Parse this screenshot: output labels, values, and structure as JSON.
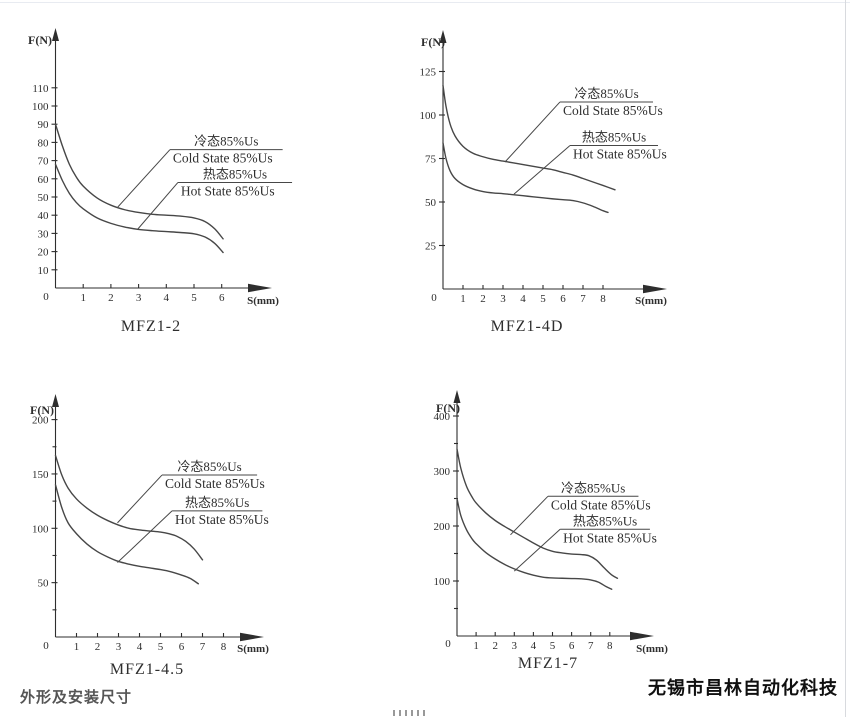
{
  "page": {
    "section_label": "外形及安装尺寸",
    "company_name": "无锡市昌林自动化科技"
  },
  "chart_data": [
    {
      "type": "line",
      "title": "MFZ1-2",
      "ylabel": "F(N)",
      "xlabel": "S(mm)",
      "origin_label": "0",
      "x_ticks": [
        1,
        2,
        3,
        4,
        5,
        6
      ],
      "y_ticks": [
        10,
        20,
        30,
        40,
        50,
        60,
        70,
        80,
        90,
        100,
        110
      ],
      "y_minor_ticks": [],
      "xlim": [
        0,
        6.05
      ],
      "ylim": [
        0,
        120
      ],
      "grid": false,
      "series": [
        {
          "name": "cold-state",
          "label_cn": "冷态85%Us",
          "label_en": "Cold State 85%Us",
          "points": [
            [
              0,
              90
            ],
            [
              0.25,
              78
            ],
            [
              0.5,
              68
            ],
            [
              0.75,
              61
            ],
            [
              1,
              56
            ],
            [
              1.5,
              49.5
            ],
            [
              2,
              45.5
            ],
            [
              2.5,
              43
            ],
            [
              3,
              41.5
            ],
            [
              3.5,
              40.5
            ],
            [
              4,
              40
            ],
            [
              4.5,
              39.5
            ],
            [
              5,
              38.5
            ],
            [
              5.4,
              36.5
            ],
            [
              5.75,
              32.5
            ],
            [
              6.05,
              27
            ]
          ]
        },
        {
          "name": "hot-state",
          "label_cn": "热态85%Us",
          "label_en": "Hot State 85%Us",
          "points": [
            [
              0,
              68
            ],
            [
              0.25,
              59
            ],
            [
              0.5,
              52
            ],
            [
              0.75,
              47
            ],
            [
              1,
              43.5
            ],
            [
              1.5,
              38.5
            ],
            [
              2,
              35.5
            ],
            [
              2.5,
              33.5
            ],
            [
              3,
              32.2
            ],
            [
              3.5,
              31.5
            ],
            [
              4,
              31
            ],
            [
              4.5,
              30.5
            ],
            [
              5,
              29.8
            ],
            [
              5.4,
              28
            ],
            [
              5.75,
              24.5
            ],
            [
              6.05,
              19.5
            ]
          ]
        }
      ],
      "legend": [
        {
          "series_index": 0,
          "underline": [
            4.13,
            8.2,
            76
          ],
          "attach": [
            2.25,
            44.5
          ]
        },
        {
          "series_index": 1,
          "underline": [
            4.42,
            8.54,
            58
          ],
          "attach": [
            2.95,
            32
          ]
        }
      ]
    },
    {
      "type": "line",
      "title": "MFZ1-4D",
      "ylabel": "F(N)",
      "xlabel": "S(mm)",
      "origin_label": "0",
      "x_ticks": [
        1,
        2,
        3,
        4,
        5,
        6,
        7,
        8
      ],
      "y_ticks": [
        25,
        50,
        75,
        100,
        125
      ],
      "y_minor_ticks": [],
      "xlim": [
        0,
        8.6
      ],
      "ylim": [
        0,
        135
      ],
      "grid": false,
      "series": [
        {
          "name": "cold-state",
          "label_cn": "冷态85%Us",
          "label_en": "Cold State 85%Us",
          "points": [
            [
              0,
              117
            ],
            [
              0.15,
              105
            ],
            [
              0.35,
              95
            ],
            [
              0.6,
              88
            ],
            [
              1,
              82
            ],
            [
              1.5,
              78
            ],
            [
              2,
              76
            ],
            [
              2.5,
              74.5
            ],
            [
              3,
              73.5
            ],
            [
              3.5,
              72.5
            ],
            [
              4,
              71.5
            ],
            [
              4.5,
              70.5
            ],
            [
              5,
              69.5
            ],
            [
              5.5,
              68.5
            ],
            [
              6,
              67
            ],
            [
              6.5,
              65.5
            ],
            [
              7,
              63.5
            ],
            [
              7.5,
              61.5
            ],
            [
              8,
              59.5
            ],
            [
              8.6,
              57
            ]
          ]
        },
        {
          "name": "hot-state",
          "label_cn": "热态85%Us",
          "label_en": "Hot State 85%Us",
          "points": [
            [
              0,
              84
            ],
            [
              0.15,
              75
            ],
            [
              0.35,
              68
            ],
            [
              0.6,
              63.5
            ],
            [
              1,
              60
            ],
            [
              1.5,
              57.5
            ],
            [
              2,
              56
            ],
            [
              2.5,
              55.2
            ],
            [
              3,
              54.8
            ],
            [
              3.5,
              54.2
            ],
            [
              4,
              53.6
            ],
            [
              4.5,
              53
            ],
            [
              5,
              52.4
            ],
            [
              5.5,
              51.8
            ],
            [
              6,
              51.3
            ],
            [
              6.5,
              50.8
            ],
            [
              7,
              49.5
            ],
            [
              7.5,
              47.5
            ],
            [
              8,
              45
            ],
            [
              8.25,
              44
            ]
          ]
        }
      ],
      "legend": [
        {
          "series_index": 0,
          "underline": [
            5.85,
            10.5,
            107.5
          ],
          "attach": [
            3.1,
            73
          ]
        },
        {
          "series_index": 1,
          "underline": [
            6.35,
            10.75,
            82.5
          ],
          "attach": [
            3.55,
            54.5
          ]
        }
      ]
    },
    {
      "type": "line",
      "title": "MFZ1-4.5",
      "ylabel": "F(N)",
      "xlabel": "S(mm)",
      "origin_label": "0",
      "x_ticks": [
        1,
        2,
        3,
        4,
        5,
        6,
        7,
        8
      ],
      "y_ticks": [
        50,
        100,
        150,
        200
      ],
      "y_minor_ticks": [
        25,
        75,
        125,
        175
      ],
      "xlim": [
        0,
        7
      ],
      "ylim": [
        0,
        210
      ],
      "grid": false,
      "series": [
        {
          "name": "cold-state",
          "label_cn": "冷态85%Us",
          "label_en": "Cold State 85%Us",
          "points": [
            [
              0,
              167
            ],
            [
              0.3,
              149
            ],
            [
              0.6,
              137
            ],
            [
              1,
              127
            ],
            [
              1.5,
              118.5
            ],
            [
              2,
              112
            ],
            [
              2.5,
              107
            ],
            [
              3,
              103
            ],
            [
              3.5,
              100
            ],
            [
              4,
              98.5
            ],
            [
              4.5,
              97.5
            ],
            [
              5,
              96.5
            ],
            [
              5.4,
              95
            ],
            [
              5.8,
              92.5
            ],
            [
              6.2,
              88
            ],
            [
              6.6,
              81
            ],
            [
              7,
              71
            ]
          ]
        },
        {
          "name": "hot-state",
          "label_cn": "热态85%Us",
          "label_en": "Hot State 85%Us",
          "points": [
            [
              0,
              140
            ],
            [
              0.3,
              119
            ],
            [
              0.6,
              105
            ],
            [
              1,
              95
            ],
            [
              1.5,
              85.5
            ],
            [
              2,
              78.5
            ],
            [
              2.5,
              73.5
            ],
            [
              3,
              69.5
            ],
            [
              3.5,
              67
            ],
            [
              4,
              65
            ],
            [
              4.5,
              63.5
            ],
            [
              5,
              62
            ],
            [
              5.5,
              60
            ],
            [
              6,
              57
            ],
            [
              6.4,
              54
            ],
            [
              6.8,
              49
            ]
          ]
        }
      ],
      "legend": [
        {
          "series_index": 0,
          "underline": [
            5.07,
            9.6,
            149
          ],
          "attach": [
            2.95,
            105
          ]
        },
        {
          "series_index": 1,
          "underline": [
            5.55,
            9.85,
            116
          ],
          "attach": [
            2.95,
            68.5
          ]
        }
      ]
    },
    {
      "type": "line",
      "title": "MFZ1-7",
      "ylabel": "F(N)",
      "xlabel": "S(mm)",
      "origin_label": "0",
      "x_ticks": [
        1,
        2,
        3,
        4,
        5,
        6,
        7,
        8
      ],
      "y_ticks": [
        100,
        200,
        300,
        400
      ],
      "y_minor_ticks": [
        50,
        150,
        250,
        350
      ],
      "xlim": [
        0,
        8.4
      ],
      "ylim": [
        0,
        420
      ],
      "grid": false,
      "series": [
        {
          "name": "cold-state",
          "label_cn": "冷态85%Us",
          "label_en": "Cold State 85%Us",
          "points": [
            [
              0,
              340
            ],
            [
              0.2,
              305
            ],
            [
              0.5,
              272
            ],
            [
              0.8,
              252
            ],
            [
              1,
              242
            ],
            [
              1.5,
              224
            ],
            [
              2,
              210
            ],
            [
              2.5,
              199
            ],
            [
              3,
              189
            ],
            [
              3.5,
              179
            ],
            [
              4,
              169
            ],
            [
              4.5,
              160
            ],
            [
              5,
              154
            ],
            [
              5.5,
              151
            ],
            [
              6,
              149
            ],
            [
              6.5,
              148
            ],
            [
              6.9,
              146
            ],
            [
              7.3,
              138
            ],
            [
              7.7,
              124
            ],
            [
              8.1,
              111
            ],
            [
              8.4,
              105
            ]
          ]
        },
        {
          "name": "hot-state",
          "label_cn": "热态85%Us",
          "label_en": "Hot State 85%Us",
          "points": [
            [
              0,
              250
            ],
            [
              0.2,
              219
            ],
            [
              0.5,
              193
            ],
            [
              0.8,
              176
            ],
            [
              1,
              168
            ],
            [
              1.5,
              152
            ],
            [
              2,
              140
            ],
            [
              2.5,
              130
            ],
            [
              3,
              122
            ],
            [
              3.5,
              115.5
            ],
            [
              4,
              110.5
            ],
            [
              4.5,
              107
            ],
            [
              5,
              105.5
            ],
            [
              5.5,
              105
            ],
            [
              6,
              104.5
            ],
            [
              6.5,
              104
            ],
            [
              7,
              102
            ],
            [
              7.4,
              98
            ],
            [
              7.8,
              90
            ],
            [
              8.1,
              85
            ]
          ]
        }
      ],
      "legend": [
        {
          "series_index": 0,
          "underline": [
            4.76,
            9.5,
            254
          ],
          "attach": [
            2.8,
            184
          ]
        },
        {
          "series_index": 1,
          "underline": [
            5.4,
            10.1,
            194
          ],
          "attach": [
            3.0,
            118
          ]
        }
      ]
    }
  ]
}
